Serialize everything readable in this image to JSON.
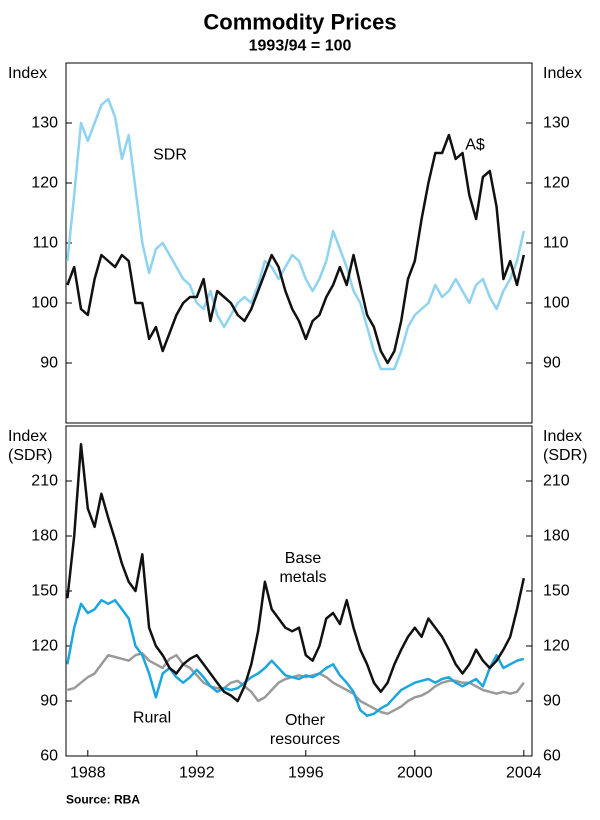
{
  "chart_data": [
    {
      "type": "line",
      "title": "Commodity Prices",
      "subtitle": "1993/94 = 100",
      "ylabel": "Index",
      "xlim": [
        1987.2,
        2004.3
      ],
      "ylim": [
        80,
        140
      ],
      "yticks": [
        90,
        100,
        110,
        120,
        130
      ],
      "x": [
        1987.25,
        1987.5,
        1987.75,
        1988,
        1988.25,
        1988.5,
        1988.75,
        1989,
        1989.25,
        1989.5,
        1989.75,
        1990,
        1990.25,
        1990.5,
        1990.75,
        1991,
        1991.25,
        1991.5,
        1991.75,
        1992,
        1992.25,
        1992.5,
        1992.75,
        1993,
        1993.25,
        1993.5,
        1993.75,
        1994,
        1994.25,
        1994.5,
        1994.75,
        1995,
        1995.25,
        1995.5,
        1995.75,
        1996,
        1996.25,
        1996.5,
        1996.75,
        1997,
        1997.25,
        1997.5,
        1997.75,
        1998,
        1998.25,
        1998.5,
        1998.75,
        1999,
        1999.25,
        1999.5,
        1999.75,
        2000,
        2000.25,
        2000.5,
        2000.75,
        2001,
        2001.25,
        2001.5,
        2001.75,
        2002,
        2002.25,
        2002.5,
        2002.75,
        2003,
        2003.25,
        2003.5,
        2003.75,
        2004
      ],
      "series": [
        {
          "name": "SDR",
          "color": "#8fd3f0",
          "values": [
            107,
            118,
            130,
            127,
            130,
            133,
            134,
            131,
            124,
            128,
            119,
            110,
            105,
            109,
            110,
            108,
            106,
            104,
            103,
            100,
            99,
            102,
            98,
            96,
            98,
            100,
            101,
            100,
            103,
            107,
            106,
            104,
            106,
            108,
            107,
            104,
            102,
            104,
            107,
            112,
            109,
            106,
            102,
            100,
            96,
            92,
            89,
            89,
            89,
            92,
            96,
            98,
            99,
            100,
            103,
            101,
            102,
            104,
            102,
            100,
            103,
            104,
            101,
            99,
            102,
            104,
            107,
            112
          ]
        },
        {
          "name": "A$",
          "color": "#111111",
          "values": [
            103,
            106,
            99,
            98,
            104,
            108,
            107,
            106,
            108,
            107,
            100,
            100,
            94,
            96,
            92,
            95,
            98,
            100,
            101,
            101,
            104,
            97,
            102,
            101,
            100,
            98,
            97,
            99,
            102,
            105,
            108,
            106,
            102,
            99,
            97,
            94,
            97,
            98,
            101,
            103,
            106,
            103,
            108,
            103,
            98,
            96,
            92,
            90,
            92,
            97,
            104,
            107,
            114,
            120,
            125,
            125,
            128,
            124,
            125,
            118,
            114,
            121,
            122,
            116,
            104,
            107,
            103,
            108
          ]
        }
      ]
    },
    {
      "type": "line",
      "ylabel": "Index (SDR)",
      "source": "Source: RBA",
      "xlim": [
        1987.2,
        2004.3
      ],
      "xticks": [
        1988,
        1992,
        1996,
        2000,
        2004
      ],
      "ylim": [
        60,
        240
      ],
      "yticks": [
        60,
        90,
        120,
        150,
        180,
        210
      ],
      "x": [
        1987.25,
        1987.5,
        1987.75,
        1988,
        1988.25,
        1988.5,
        1988.75,
        1989,
        1989.25,
        1989.5,
        1989.75,
        1990,
        1990.25,
        1990.5,
        1990.75,
        1991,
        1991.25,
        1991.5,
        1991.75,
        1992,
        1992.25,
        1992.5,
        1992.75,
        1993,
        1993.25,
        1993.5,
        1993.75,
        1994,
        1994.25,
        1994.5,
        1994.75,
        1995,
        1995.25,
        1995.5,
        1995.75,
        1996,
        1996.25,
        1996.5,
        1996.75,
        1997,
        1997.25,
        1997.5,
        1997.75,
        1998,
        1998.25,
        1998.5,
        1998.75,
        1999,
        1999.25,
        1999.5,
        1999.75,
        2000,
        2000.25,
        2000.5,
        2000.75,
        2001,
        2001.25,
        2001.5,
        2001.75,
        2002,
        2002.25,
        2002.5,
        2002.75,
        2003,
        2003.25,
        2003.5,
        2003.75,
        2004
      ],
      "series": [
        {
          "name": "Other resources",
          "color": "#9a9a9a",
          "values": [
            96,
            97,
            100,
            103,
            105,
            110,
            115,
            114,
            113,
            112,
            115,
            116,
            112,
            110,
            108,
            113,
            115,
            110,
            108,
            104,
            100,
            98,
            97,
            97,
            100,
            101,
            98,
            95,
            90,
            92,
            96,
            100,
            102,
            103,
            104,
            103,
            104,
            105,
            103,
            100,
            98,
            96,
            94,
            90,
            88,
            86,
            84,
            83,
            85,
            87,
            90,
            92,
            93,
            95,
            98,
            100,
            101,
            101,
            100,
            100,
            98,
            96,
            95,
            94,
            95,
            94,
            95,
            100
          ]
        },
        {
          "name": "Rural",
          "color": "#1ba6e0",
          "values": [
            110,
            130,
            143,
            138,
            140,
            145,
            143,
            145,
            140,
            135,
            120,
            115,
            105,
            92,
            105,
            108,
            103,
            100,
            103,
            107,
            103,
            98,
            95,
            97,
            96,
            97,
            100,
            103,
            105,
            108,
            112,
            108,
            104,
            103,
            102,
            104,
            103,
            105,
            108,
            110,
            104,
            100,
            95,
            85,
            82,
            83,
            86,
            88,
            92,
            96,
            98,
            100,
            101,
            102,
            100,
            102,
            103,
            100,
            98,
            100,
            102,
            98,
            108,
            115,
            108,
            110,
            112,
            113
          ]
        },
        {
          "name": "Base metals",
          "color": "#111111",
          "values": [
            146,
            180,
            230,
            195,
            185,
            203,
            190,
            178,
            165,
            155,
            150,
            170,
            130,
            120,
            115,
            108,
            105,
            110,
            113,
            115,
            110,
            105,
            100,
            95,
            93,
            90,
            98,
            110,
            128,
            155,
            140,
            135,
            130,
            128,
            130,
            115,
            112,
            120,
            135,
            138,
            132,
            145,
            130,
            118,
            110,
            100,
            95,
            100,
            110,
            118,
            125,
            130,
            125,
            135,
            130,
            125,
            118,
            110,
            105,
            110,
            118,
            112,
            108,
            112,
            118,
            125,
            140,
            157
          ]
        }
      ]
    }
  ]
}
